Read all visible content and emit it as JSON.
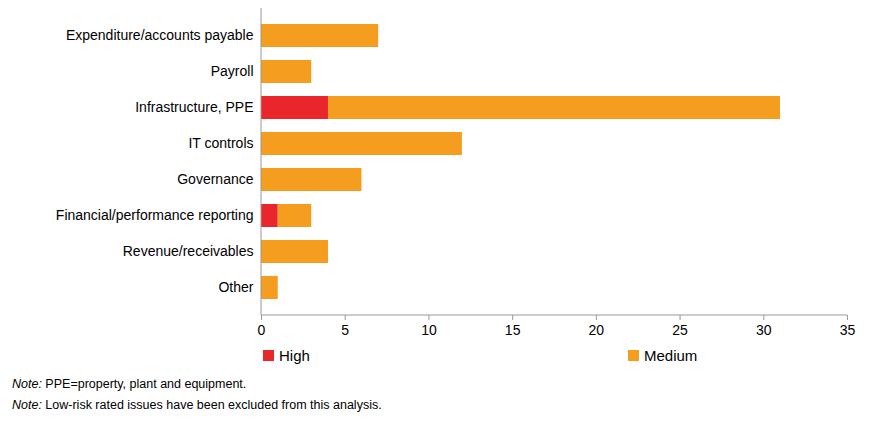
{
  "chart_data": {
    "type": "bar",
    "orientation": "horizontal",
    "stacked": true,
    "categories": [
      "Expenditure/accounts payable",
      "Payroll",
      "Infrastructure, PPE",
      "IT controls",
      "Governance",
      "Financial/performance reporting",
      "Revenue/receivables",
      "Other"
    ],
    "series": [
      {
        "name": "High",
        "color": "#e8262b",
        "values": [
          0,
          0,
          4,
          0,
          0,
          1,
          0,
          0
        ]
      },
      {
        "name": "Medium",
        "color": "#f59d1f",
        "values": [
          7,
          3,
          27,
          12,
          6,
          2,
          4,
          1
        ]
      }
    ],
    "xlim": [
      0,
      35
    ],
    "xticks": [
      0,
      5,
      10,
      15,
      20,
      25,
      30,
      35
    ],
    "grid": false,
    "legend": "bottom",
    "notes": [
      "Note: PPE=property, plant and equipment.",
      "Note: Low-risk rated issues have been excluded from this analysis."
    ]
  }
}
